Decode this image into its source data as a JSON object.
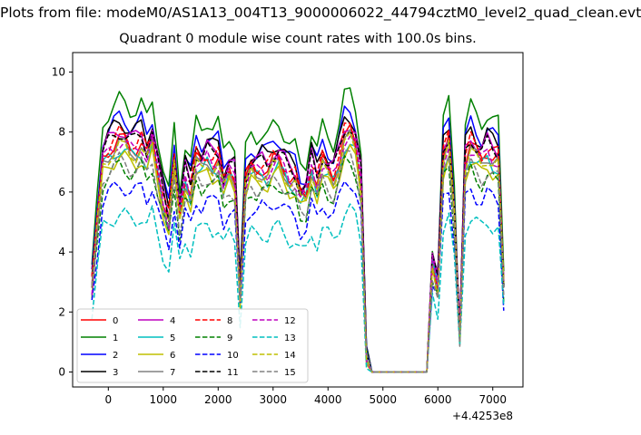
{
  "figure": {
    "suptitle": "Plots from file: modeM0/AS1A13_004T13_9000006022_44794cztM0_level2_quad_clean.evt",
    "title": "Quadrant 0 module wise count rates with 100.0s bins.",
    "x_offset_label": "+4.4253e8"
  },
  "chart_data": {
    "type": "line",
    "title": "Quadrant 0 module wise count rates with 100.0s bins.",
    "xlim": [
      -650,
      7550
    ],
    "ylim": [
      -0.5,
      10.65
    ],
    "x_offset": 442530000,
    "xticks": [
      0,
      1000,
      2000,
      3000,
      4000,
      5000,
      6000,
      7000
    ],
    "yticks": [
      0,
      2,
      4,
      6,
      8,
      10
    ],
    "legend": {
      "placement": "lower-left",
      "ncol": 4
    },
    "x": [
      -300,
      -200,
      -100,
      0,
      100,
      200,
      300,
      400,
      500,
      600,
      700,
      800,
      900,
      1000,
      1100,
      1200,
      1300,
      1400,
      1500,
      1600,
      1700,
      1800,
      1900,
      2000,
      2100,
      2200,
      2300,
      2400,
      2500,
      2600,
      2700,
      2800,
      2900,
      3000,
      3100,
      3200,
      3300,
      3400,
      3500,
      3600,
      3700,
      3800,
      3900,
      4000,
      4100,
      4200,
      4300,
      4400,
      4500,
      4600,
      4700,
      4800,
      4900,
      5000,
      5100,
      5200,
      5300,
      5400,
      5500,
      5600,
      5700,
      5800,
      5900,
      6000,
      6100,
      6200,
      6300,
      6400,
      6500,
      6600,
      6700,
      6800,
      6900,
      7000,
      7100,
      7200
    ],
    "base": [
      3.0,
      5.2,
      7.4,
      7.7,
      7.9,
      8.1,
      8.0,
      7.8,
      7.8,
      8.0,
      7.5,
      8.1,
      7.0,
      6.0,
      5.3,
      7.3,
      5.5,
      6.8,
      6.3,
      7.4,
      7.2,
      7.5,
      7.3,
      7.4,
      6.5,
      7.0,
      6.8,
      2.7,
      6.6,
      7.1,
      7.0,
      7.1,
      7.0,
      7.3,
      7.4,
      7.1,
      6.8,
      6.7,
      6.1,
      6.2,
      7.2,
      6.6,
      7.3,
      7.0,
      6.8,
      7.4,
      8.2,
      8.3,
      7.9,
      6.7,
      0.6,
      0,
      0,
      0,
      0,
      0,
      0,
      0,
      0,
      0,
      0,
      0,
      3.8,
      3.0,
      7.5,
      8.0,
      5.6,
      1.3,
      7.4,
      7.9,
      7.6,
      7.4,
      7.7,
      7.5,
      7.4,
      3.0
    ],
    "series": [
      {
        "name": "0",
        "color": "#ff0000",
        "dash": "solid",
        "scale": 0.96
      },
      {
        "name": "1",
        "color": "#008000",
        "dash": "solid",
        "scale": 1.12
      },
      {
        "name": "2",
        "color": "#0000ff",
        "dash": "solid",
        "scale": 1.05
      },
      {
        "name": "3",
        "color": "#000000",
        "dash": "solid",
        "scale": 1.03
      },
      {
        "name": "4",
        "color": "#bf00bf",
        "dash": "solid",
        "scale": 1.0
      },
      {
        "name": "5",
        "color": "#00bfbf",
        "dash": "solid",
        "scale": 0.92
      },
      {
        "name": "6",
        "color": "#bfbf00",
        "dash": "solid",
        "scale": 0.89
      },
      {
        "name": "7",
        "color": "#808080",
        "dash": "solid",
        "scale": 0.94
      },
      {
        "name": "8",
        "color": "#ff0000",
        "dash": "dashed",
        "scale": 0.98
      },
      {
        "name": "9",
        "color": "#008000",
        "dash": "dashed",
        "scale": 0.85
      },
      {
        "name": "10",
        "color": "#0000ff",
        "dash": "dashed",
        "scale": 0.77
      },
      {
        "name": "11",
        "color": "#000000",
        "dash": "dashed",
        "scale": 0.99
      },
      {
        "name": "12",
        "color": "#bf00bf",
        "dash": "dashed",
        "scale": 0.95
      },
      {
        "name": "13",
        "color": "#00bfbf",
        "dash": "dashed",
        "scale": 0.65
      },
      {
        "name": "14",
        "color": "#bfbf00",
        "dash": "dashed",
        "scale": 0.93
      },
      {
        "name": "15",
        "color": "#808080",
        "dash": "dashed",
        "scale": 0.87
      }
    ]
  }
}
